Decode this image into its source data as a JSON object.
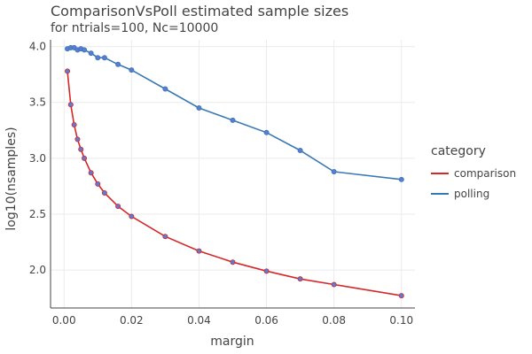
{
  "chart_data": {
    "type": "line",
    "title": "ComparisonVsPoll estimated sample sizes",
    "subtitle": "for ntrials=100, Nc=10000",
    "xlabel": "margin",
    "ylabel": "log10(nsamples)",
    "xlim": [
      -0.004,
      0.104
    ],
    "ylim": [
      1.66,
      4.06
    ],
    "xticks": [
      0.0,
      0.02,
      0.04,
      0.06,
      0.08,
      0.1
    ],
    "xtick_labels": [
      "0.00",
      "0.02",
      "0.04",
      "0.06",
      "0.08",
      "0.10"
    ],
    "yticks": [
      2.0,
      2.5,
      3.0,
      3.5,
      4.0
    ],
    "ytick_labels": [
      "2.0",
      "2.5",
      "3.0",
      "3.5",
      "4.0"
    ],
    "grid": true,
    "legend_title": "category",
    "legend_position": "right",
    "series": [
      {
        "name": "comparison",
        "color": "#d62728",
        "marker_color": "#5b7bd5",
        "x": [
          0.001,
          0.002,
          0.003,
          0.004,
          0.005,
          0.006,
          0.008,
          0.01,
          0.012,
          0.016,
          0.02,
          0.03,
          0.04,
          0.05,
          0.06,
          0.07,
          0.08,
          0.1
        ],
        "y": [
          3.78,
          3.48,
          3.3,
          3.17,
          3.08,
          3.0,
          2.87,
          2.77,
          2.69,
          2.57,
          2.48,
          2.3,
          2.17,
          2.07,
          1.99,
          1.92,
          1.87,
          1.77
        ]
      },
      {
        "name": "polling",
        "color": "#3a78b4",
        "marker_color": "#5b7bd5",
        "x": [
          0.001,
          0.002,
          0.003,
          0.004,
          0.005,
          0.006,
          0.008,
          0.01,
          0.012,
          0.016,
          0.02,
          0.03,
          0.04,
          0.05,
          0.06,
          0.07,
          0.08,
          0.1
        ],
        "y": [
          3.98,
          3.99,
          3.99,
          3.97,
          3.98,
          3.97,
          3.94,
          3.9,
          3.9,
          3.84,
          3.79,
          3.62,
          3.45,
          3.34,
          3.23,
          3.07,
          2.88,
          2.81
        ]
      }
    ]
  }
}
